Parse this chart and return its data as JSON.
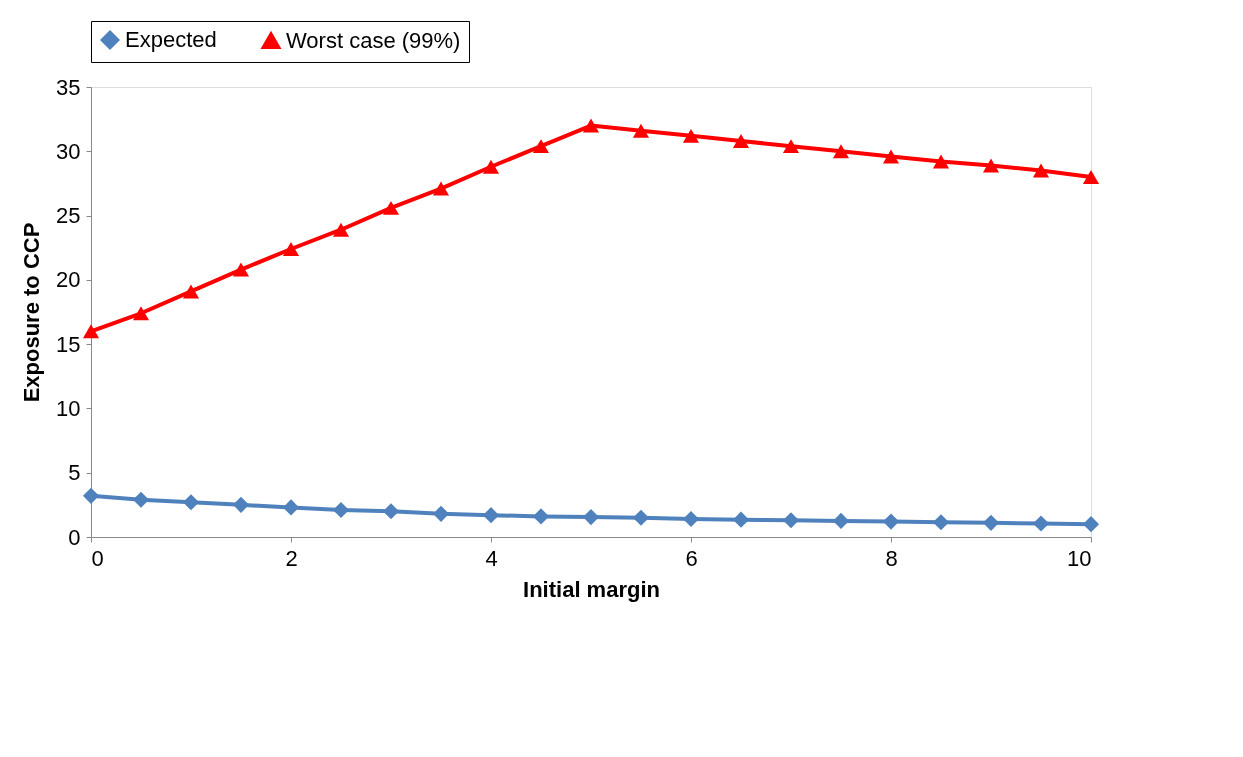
{
  "chart_data": {
    "type": "line",
    "xlabel": "Initial margin",
    "ylabel": "Exposure to CCP",
    "x": [
      0,
      0.5,
      1,
      1.5,
      2,
      2.5,
      3,
      3.5,
      4,
      4.5,
      5,
      5.5,
      6,
      6.5,
      7,
      7.5,
      8,
      8.5,
      9,
      9.5,
      10
    ],
    "series": [
      {
        "name": "Expected",
        "color": "#4f81bd",
        "marker": "diamond",
        "values": [
          3.2,
          2.9,
          2.7,
          2.5,
          2.3,
          2.1,
          2.0,
          1.8,
          1.7,
          1.6,
          1.55,
          1.5,
          1.4,
          1.35,
          1.3,
          1.25,
          1.2,
          1.15,
          1.1,
          1.05,
          1.0
        ]
      },
      {
        "name": "Worst case (99%)",
        "color": "#ff0000",
        "marker": "triangle",
        "values": [
          16.0,
          17.4,
          19.1,
          20.8,
          22.4,
          23.9,
          25.6,
          27.1,
          28.8,
          30.4,
          32.0,
          31.6,
          31.2,
          30.8,
          30.4,
          30.0,
          29.6,
          29.2,
          28.9,
          28.5,
          28.0
        ]
      }
    ],
    "xlim": [
      0,
      10
    ],
    "xticks": [
      0,
      2,
      4,
      6,
      8,
      10
    ],
    "ylim": [
      0,
      35
    ],
    "yticks": [
      0,
      5,
      10,
      15,
      20,
      25,
      30,
      35
    ],
    "grid": false,
    "legend": "top",
    "line_style": "solid"
  }
}
